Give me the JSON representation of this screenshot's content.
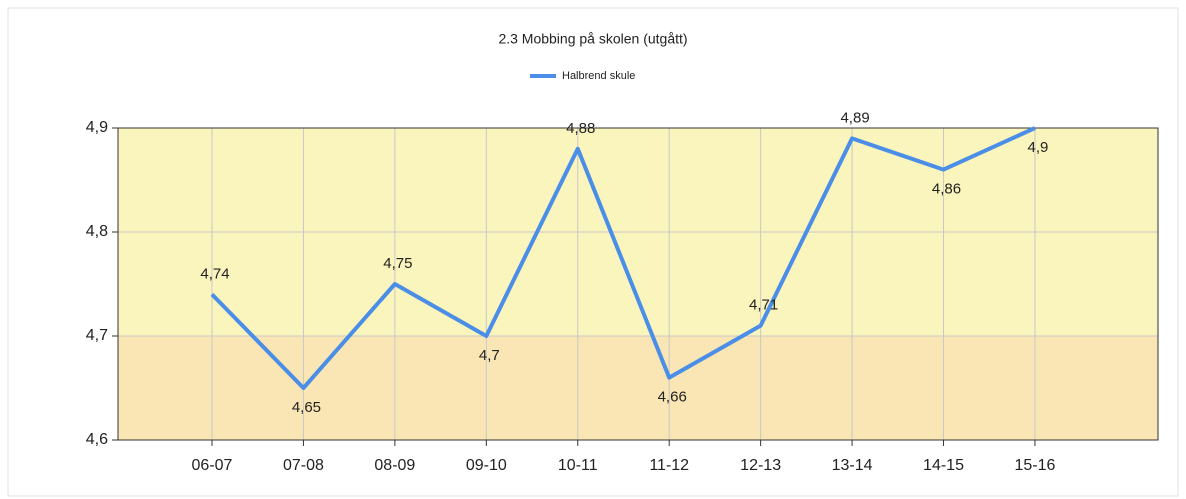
{
  "chart_data": {
    "type": "line",
    "title": "2.3 Mobbing på skolen (utgått)",
    "categories": [
      "06-07",
      "07-08",
      "08-09",
      "09-10",
      "10-11",
      "11-12",
      "12-13",
      "13-14",
      "14-15",
      "15-16"
    ],
    "series": [
      {
        "name": "Halbrend skule",
        "color": "#4a8ee8",
        "values": [
          4.74,
          4.65,
          4.75,
          4.7,
          4.88,
          4.66,
          4.71,
          4.89,
          4.86,
          4.9
        ],
        "value_labels": [
          "4,74",
          "4,65",
          "4,75",
          "4,7",
          "4,88",
          "4,66",
          "4,71",
          "4,89",
          "4,86",
          "4,9"
        ]
      }
    ],
    "ylim": [
      4.6,
      4.9
    ],
    "yticks": [
      {
        "value": 4.6,
        "label": "4,6"
      },
      {
        "value": 4.7,
        "label": "4,7"
      },
      {
        "value": 4.8,
        "label": "4,8"
      },
      {
        "value": 4.9,
        "label": "4,9"
      }
    ],
    "bands": [
      {
        "from": 4.6,
        "to": 4.7,
        "color": "#fae5b4"
      },
      {
        "from": 4.7,
        "to": 4.9,
        "color": "#faf4bd"
      }
    ],
    "grid": true
  }
}
